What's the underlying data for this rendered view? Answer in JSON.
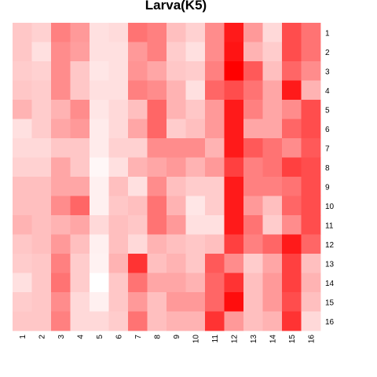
{
  "chart_data": {
    "type": "heatmap",
    "title": "Larva(K5)",
    "xlabel": "",
    "ylabel": "",
    "row_labels": [
      "1",
      "2",
      "3",
      "4",
      "5",
      "6",
      "7",
      "8",
      "9",
      "10",
      "11",
      "12",
      "13",
      "14",
      "15",
      "16"
    ],
    "col_labels": [
      "1",
      "2",
      "3",
      "4",
      "5",
      "6",
      "7",
      "8",
      "9",
      "10",
      "11",
      "12",
      "13",
      "14",
      "15",
      "16"
    ],
    "value_range": [
      0,
      1
    ],
    "low_color": "#FFFFFF",
    "high_color": "#FF0000",
    "grid": false,
    "values": [
      [
        0.22,
        0.18,
        0.5,
        0.4,
        0.12,
        0.14,
        0.55,
        0.5,
        0.25,
        0.18,
        0.45,
        0.9,
        0.4,
        0.15,
        0.7,
        0.55
      ],
      [
        0.22,
        0.12,
        0.45,
        0.38,
        0.12,
        0.12,
        0.4,
        0.5,
        0.2,
        0.12,
        0.45,
        0.92,
        0.3,
        0.2,
        0.7,
        0.55
      ],
      [
        0.2,
        0.18,
        0.45,
        0.22,
        0.1,
        0.12,
        0.42,
        0.35,
        0.22,
        0.2,
        0.5,
        1.0,
        0.65,
        0.25,
        0.6,
        0.45
      ],
      [
        0.22,
        0.2,
        0.45,
        0.22,
        0.12,
        0.12,
        0.5,
        0.45,
        0.3,
        0.12,
        0.6,
        0.7,
        0.55,
        0.35,
        0.9,
        0.3
      ],
      [
        0.3,
        0.2,
        0.3,
        0.45,
        0.1,
        0.15,
        0.25,
        0.6,
        0.3,
        0.22,
        0.4,
        0.9,
        0.5,
        0.35,
        0.45,
        0.7
      ],
      [
        0.12,
        0.2,
        0.35,
        0.4,
        0.08,
        0.15,
        0.35,
        0.6,
        0.2,
        0.25,
        0.4,
        0.9,
        0.35,
        0.35,
        0.6,
        0.7
      ],
      [
        0.15,
        0.15,
        0.22,
        0.22,
        0.08,
        0.18,
        0.18,
        0.45,
        0.45,
        0.45,
        0.3,
        0.9,
        0.65,
        0.55,
        0.45,
        0.65
      ],
      [
        0.18,
        0.18,
        0.35,
        0.22,
        0.03,
        0.12,
        0.3,
        0.35,
        0.4,
        0.3,
        0.4,
        0.75,
        0.5,
        0.55,
        0.75,
        0.7
      ],
      [
        0.25,
        0.25,
        0.35,
        0.35,
        0.06,
        0.25,
        0.12,
        0.45,
        0.25,
        0.2,
        0.2,
        0.9,
        0.5,
        0.5,
        0.55,
        0.7
      ],
      [
        0.25,
        0.25,
        0.45,
        0.6,
        0.06,
        0.22,
        0.25,
        0.55,
        0.3,
        0.1,
        0.2,
        0.9,
        0.4,
        0.25,
        0.6,
        0.7
      ],
      [
        0.3,
        0.25,
        0.3,
        0.35,
        0.15,
        0.25,
        0.22,
        0.55,
        0.4,
        0.12,
        0.12,
        0.9,
        0.55,
        0.2,
        0.45,
        0.7
      ],
      [
        0.22,
        0.25,
        0.4,
        0.25,
        0.06,
        0.25,
        0.15,
        0.3,
        0.25,
        0.22,
        0.25,
        0.75,
        0.5,
        0.6,
        0.9,
        0.6
      ],
      [
        0.2,
        0.22,
        0.5,
        0.2,
        0.05,
        0.3,
        0.8,
        0.25,
        0.3,
        0.22,
        0.65,
        0.45,
        0.2,
        0.35,
        0.75,
        0.25
      ],
      [
        0.12,
        0.22,
        0.55,
        0.2,
        0.0,
        0.22,
        0.55,
        0.35,
        0.35,
        0.3,
        0.6,
        0.8,
        0.25,
        0.4,
        0.75,
        0.3
      ],
      [
        0.2,
        0.22,
        0.45,
        0.15,
        0.06,
        0.22,
        0.4,
        0.25,
        0.4,
        0.4,
        0.6,
        0.95,
        0.25,
        0.4,
        0.7,
        0.25
      ],
      [
        0.22,
        0.22,
        0.5,
        0.15,
        0.15,
        0.2,
        0.55,
        0.25,
        0.3,
        0.3,
        0.8,
        0.4,
        0.25,
        0.3,
        0.8,
        0.15
      ]
    ]
  }
}
